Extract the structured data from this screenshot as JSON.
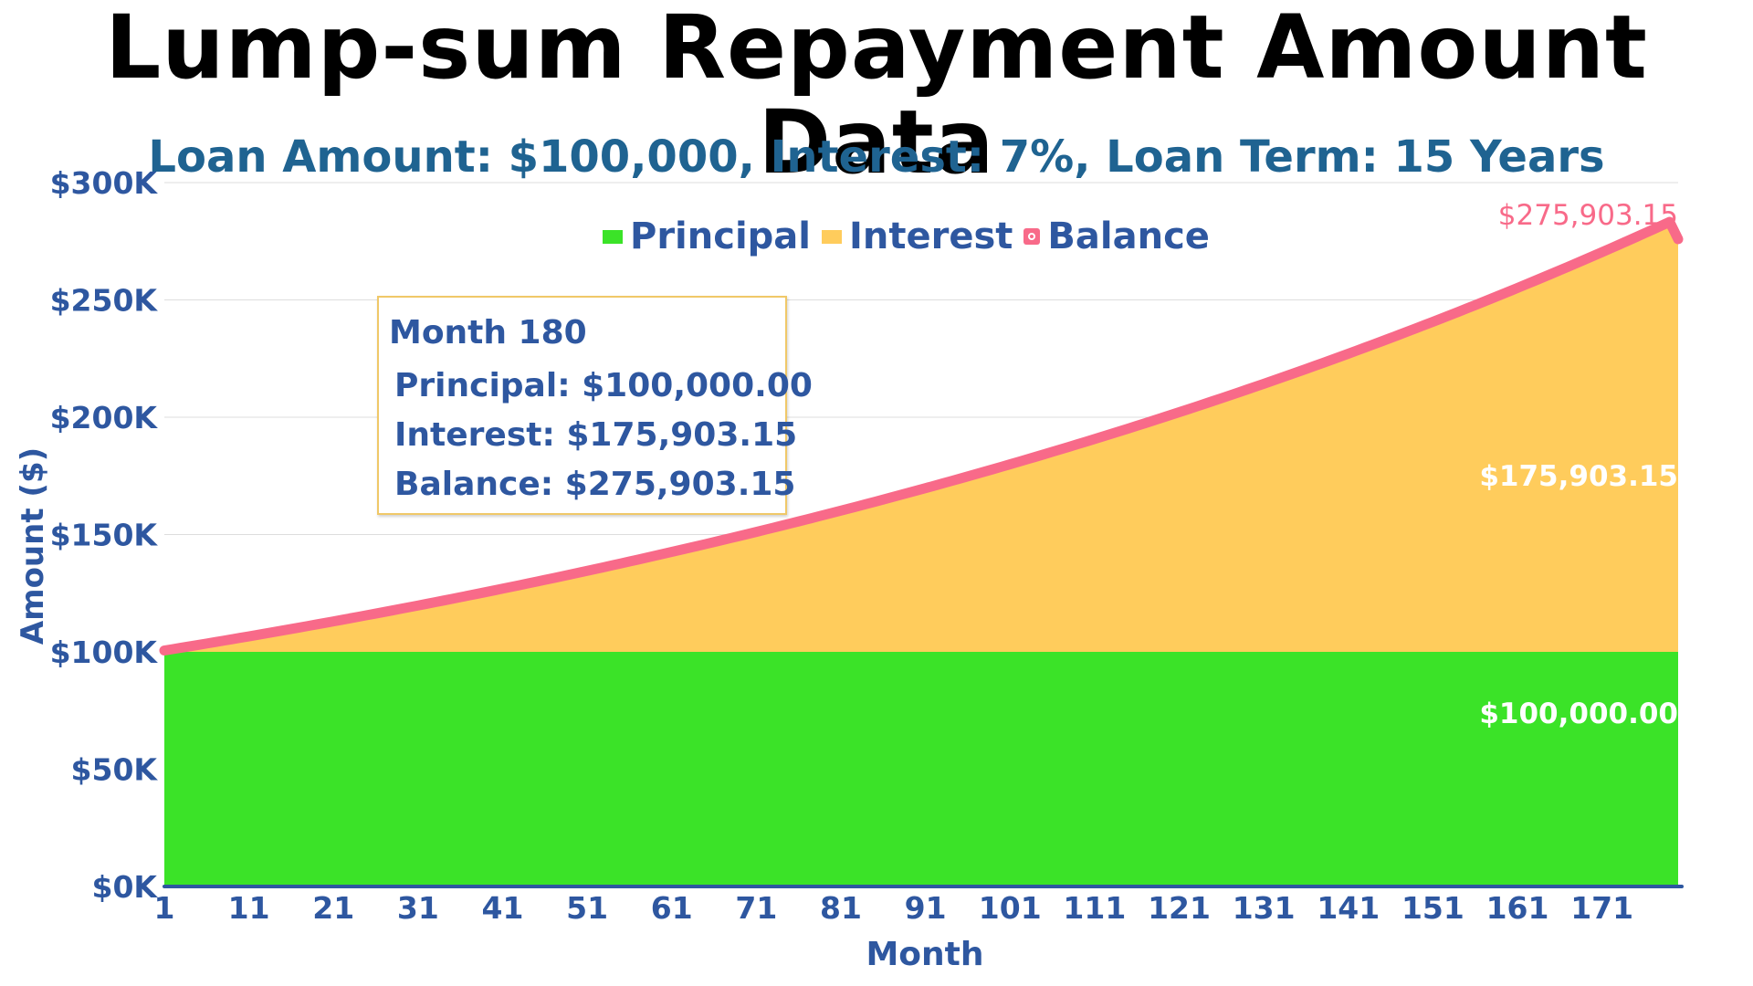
{
  "colors": {
    "principal": "#3be328",
    "interest": "#ffcc5c",
    "balance": "#f86a89",
    "axis": "#2e57a0",
    "subtitle": "#1f6391",
    "grid": "#dddddd",
    "tooltip_border": "#f0c868"
  },
  "legend": {
    "principal": "Principal",
    "interest": "Interest",
    "balance": "Balance"
  },
  "tooltip": {
    "title": "Month 180",
    "principal": "Principal: $100,000.00",
    "interest": "Interest: $175,903.15",
    "balance": "Balance: $275,903.15"
  },
  "chart_data": {
    "type": "area",
    "title": "Lump-sum Repayment Amount Data",
    "subtitle": "Loan Amount: $100,000, Interest: 7%, Loan Term: 15 Years",
    "xlabel": "Month",
    "ylabel": "Amount ($)",
    "x_ticks": [
      "1",
      "11",
      "21",
      "31",
      "41",
      "51",
      "61",
      "71",
      "81",
      "91",
      "101",
      "111",
      "121",
      "131",
      "141",
      "151",
      "161",
      "171"
    ],
    "x_range": [
      1,
      180
    ],
    "y_ticks": [
      "$0K",
      "$50K",
      "$100K",
      "$150K",
      "$200K",
      "$250K",
      "$300K"
    ],
    "ylim": [
      0,
      300000
    ],
    "grid": "horizontal",
    "legend_position": "top-center",
    "series": [
      {
        "name": "Principal",
        "kind": "stacked-area",
        "x": [
          1,
          180
        ],
        "values": [
          100000,
          100000
        ]
      },
      {
        "name": "Interest",
        "kind": "stacked-area",
        "x": [
          1,
          11,
          21,
          31,
          41,
          51,
          61,
          71,
          81,
          91,
          101,
          111,
          121,
          131,
          141,
          151,
          161,
          171,
          180
        ],
        "values": [
          583.33,
          6797.01,
          13473.44,
          20641.81,
          28337.47,
          36598.06,
          45463.72,
          54976.33,
          65180.72,
          76124.41,
          87858.37,
          100436.15,
          113915.99,
          128359.54,
          143833.8,
          160409.81,
          178162.84,
          197173.32,
          175903.15
        ]
      },
      {
        "name": "Balance",
        "kind": "line",
        "x": [
          1,
          11,
          21,
          31,
          41,
          51,
          61,
          71,
          81,
          91,
          101,
          111,
          121,
          131,
          141,
          151,
          161,
          171,
          180
        ],
        "values": [
          100583.33,
          106797.01,
          113473.44,
          120641.81,
          128337.47,
          136598.06,
          145463.72,
          154976.33,
          165180.72,
          176124.41,
          187858.37,
          200436.15,
          213915.99,
          228359.54,
          243833.8,
          260409.81,
          278162.84,
          297173.32,
          275903.15
        ]
      }
    ],
    "data_labels": {
      "balance_end": "$275,903.15",
      "interest_end": "$175,903.15",
      "principal_end": "$100,000.00"
    }
  }
}
